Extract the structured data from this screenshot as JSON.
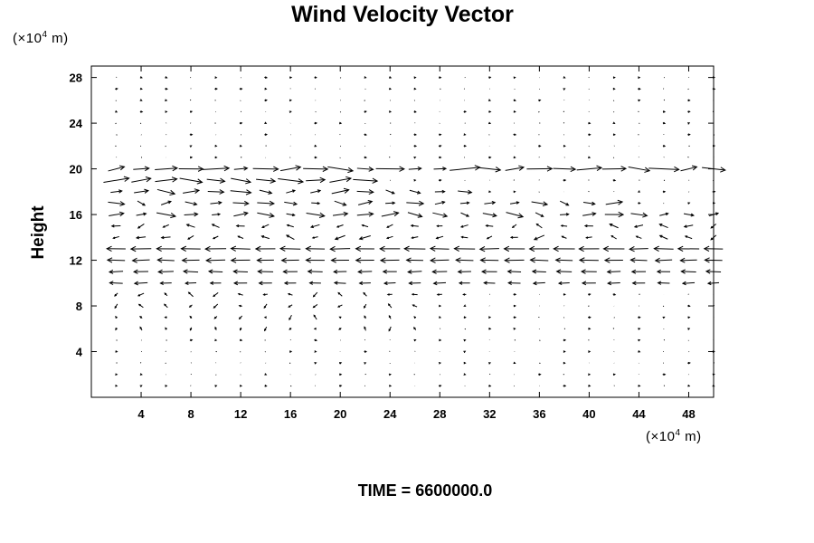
{
  "chart_data": {
    "type": "vector-field",
    "title": "Wind Velocity Vector",
    "ylabel": "Height",
    "x_unit_prefix": "(×10",
    "x_unit_exp": "4",
    "x_unit_suffix": " m)",
    "y_unit_prefix": "(×10",
    "y_unit_exp": "4",
    "y_unit_suffix": " m)",
    "xlim": [
      0,
      50
    ],
    "ylim": [
      0,
      29
    ],
    "x_ticks": [
      4,
      8,
      12,
      16,
      20,
      24,
      28,
      32,
      36,
      40,
      44,
      48
    ],
    "y_ticks": [
      4,
      8,
      12,
      16,
      20,
      24,
      28
    ],
    "grid_x": {
      "start": 0,
      "step": 2,
      "count": 26
    },
    "grid_y": {
      "start": 1,
      "step": 1,
      "count": 28
    },
    "bands": [
      {
        "y": 20,
        "u": 2.2,
        "x_range": [
          0,
          50
        ],
        "variable": true
      },
      {
        "y": 19,
        "u": 1.8,
        "x_range": [
          0,
          22
        ],
        "variable": true
      },
      {
        "y": 18,
        "u": 1.5,
        "x_range": [
          0,
          30
        ],
        "variable": true
      },
      {
        "y": 17,
        "u": 1.2,
        "x_range": [
          0,
          42
        ],
        "variable": true
      },
      {
        "y": 16,
        "u": 1.4,
        "x_range": [
          0,
          50
        ],
        "variable": true
      },
      {
        "y": 15,
        "u": -0.6,
        "x_range": [
          0,
          50
        ],
        "variable": true
      },
      {
        "y": 14,
        "u": -0.8,
        "x_range": [
          0,
          50
        ],
        "variable": true
      },
      {
        "y": 13,
        "u": -2.0,
        "x_range": [
          0,
          50
        ],
        "variable": false
      },
      {
        "y": 12,
        "u": -1.8,
        "x_range": [
          0,
          50
        ],
        "variable": false
      },
      {
        "y": 11,
        "u": -1.4,
        "x_range": [
          0,
          50
        ],
        "variable": false
      },
      {
        "y": 10,
        "u": -1.2,
        "x_range": [
          0,
          50
        ],
        "variable": false
      },
      {
        "y": 9,
        "u": -0.4,
        "x_range": [
          0,
          30
        ],
        "variable": true
      },
      {
        "y": 8,
        "u": -0.3,
        "x_range": [
          0,
          26
        ],
        "variable": true
      },
      {
        "y": 7,
        "u": -0.2,
        "x_range": [
          0,
          26
        ],
        "variable": true
      },
      {
        "y": 6,
        "u": -0.15,
        "x_range": [
          0,
          26
        ],
        "variable": true
      }
    ]
  },
  "time_label": "TIME = 6600000.0"
}
